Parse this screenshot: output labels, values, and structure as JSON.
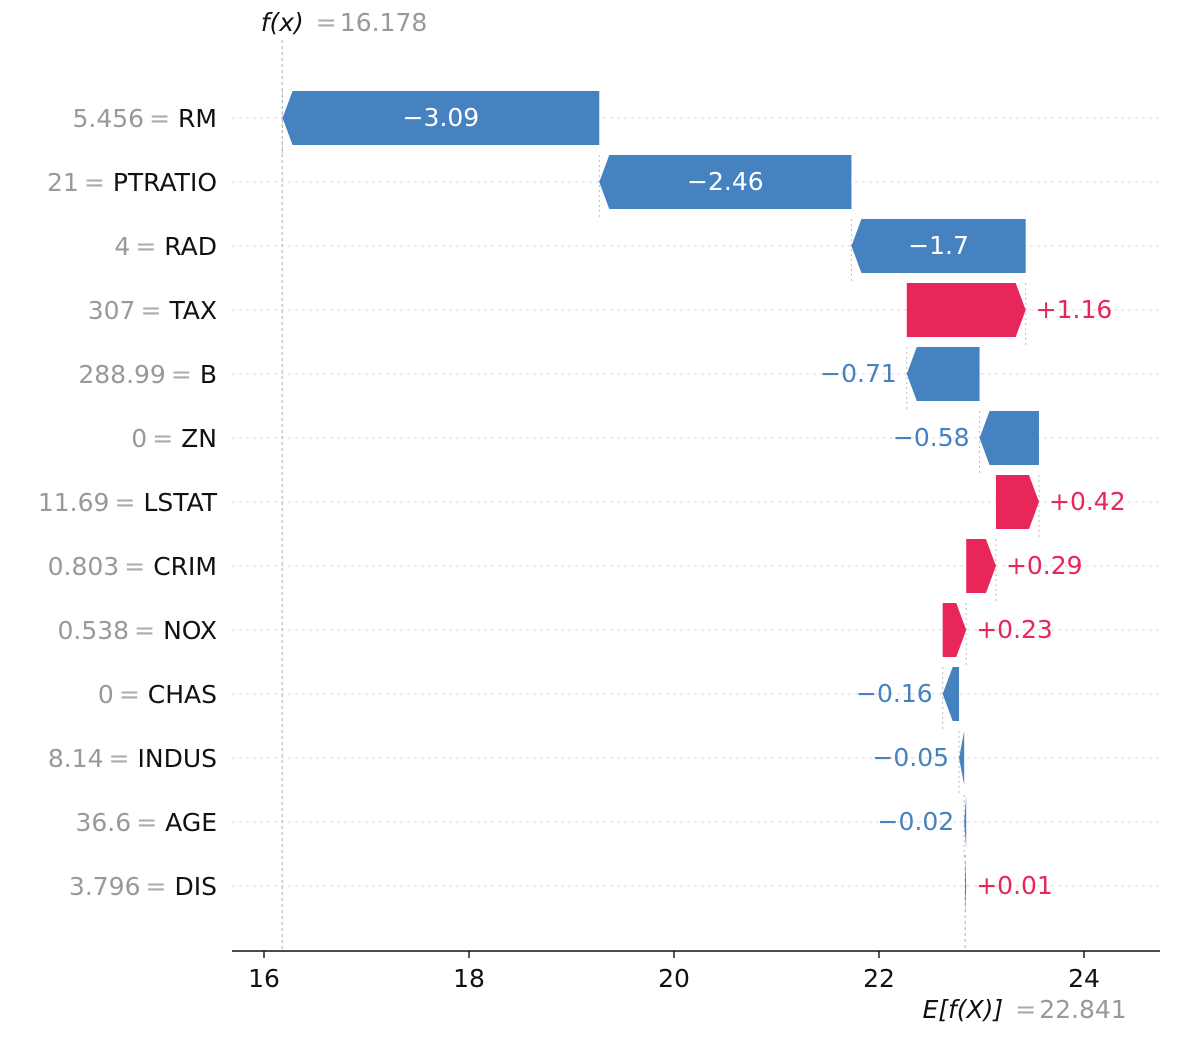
{
  "chart_data": {
    "type": "waterfall",
    "fx_label": "f(x)",
    "fx_value": "16.178",
    "fx": 16.178,
    "ex_label": "E[f(X)]",
    "ex_value": "22.841",
    "ex": 22.841,
    "xlim": [
      15.6,
      24.8
    ],
    "xticks": [
      16,
      18,
      20,
      22,
      24
    ],
    "grid": "horizontal dotted",
    "colors": {
      "positive": "#e8265a",
      "negative": "#4682c0",
      "feature_value": "#999999",
      "text": "#111111"
    },
    "features": [
      {
        "value": "5.456",
        "name": "RM",
        "shap": -3.09,
        "label": "−3.09"
      },
      {
        "value": "21",
        "name": "PTRATIO",
        "shap": -2.46,
        "label": "−2.46"
      },
      {
        "value": "4",
        "name": "RAD",
        "shap": -1.7,
        "label": "−1.7"
      },
      {
        "value": "307",
        "name": "TAX",
        "shap": 1.16,
        "label": "+1.16"
      },
      {
        "value": "288.99",
        "name": "B",
        "shap": -0.71,
        "label": "−0.71"
      },
      {
        "value": "0",
        "name": "ZN",
        "shap": -0.58,
        "label": "−0.58"
      },
      {
        "value": "11.69",
        "name": "LSTAT",
        "shap": 0.42,
        "label": "+0.42"
      },
      {
        "value": "0.803",
        "name": "CRIM",
        "shap": 0.29,
        "label": "+0.29"
      },
      {
        "value": "0.538",
        "name": "NOX",
        "shap": 0.23,
        "label": "+0.23"
      },
      {
        "value": "0",
        "name": "CHAS",
        "shap": -0.16,
        "label": "−0.16"
      },
      {
        "value": "8.14",
        "name": "INDUS",
        "shap": -0.05,
        "label": "−0.05"
      },
      {
        "value": "36.6",
        "name": "AGE",
        "shap": -0.02,
        "label": "−0.02"
      },
      {
        "value": "3.796",
        "name": "DIS",
        "shap": 0.01,
        "label": "+0.01"
      }
    ]
  }
}
